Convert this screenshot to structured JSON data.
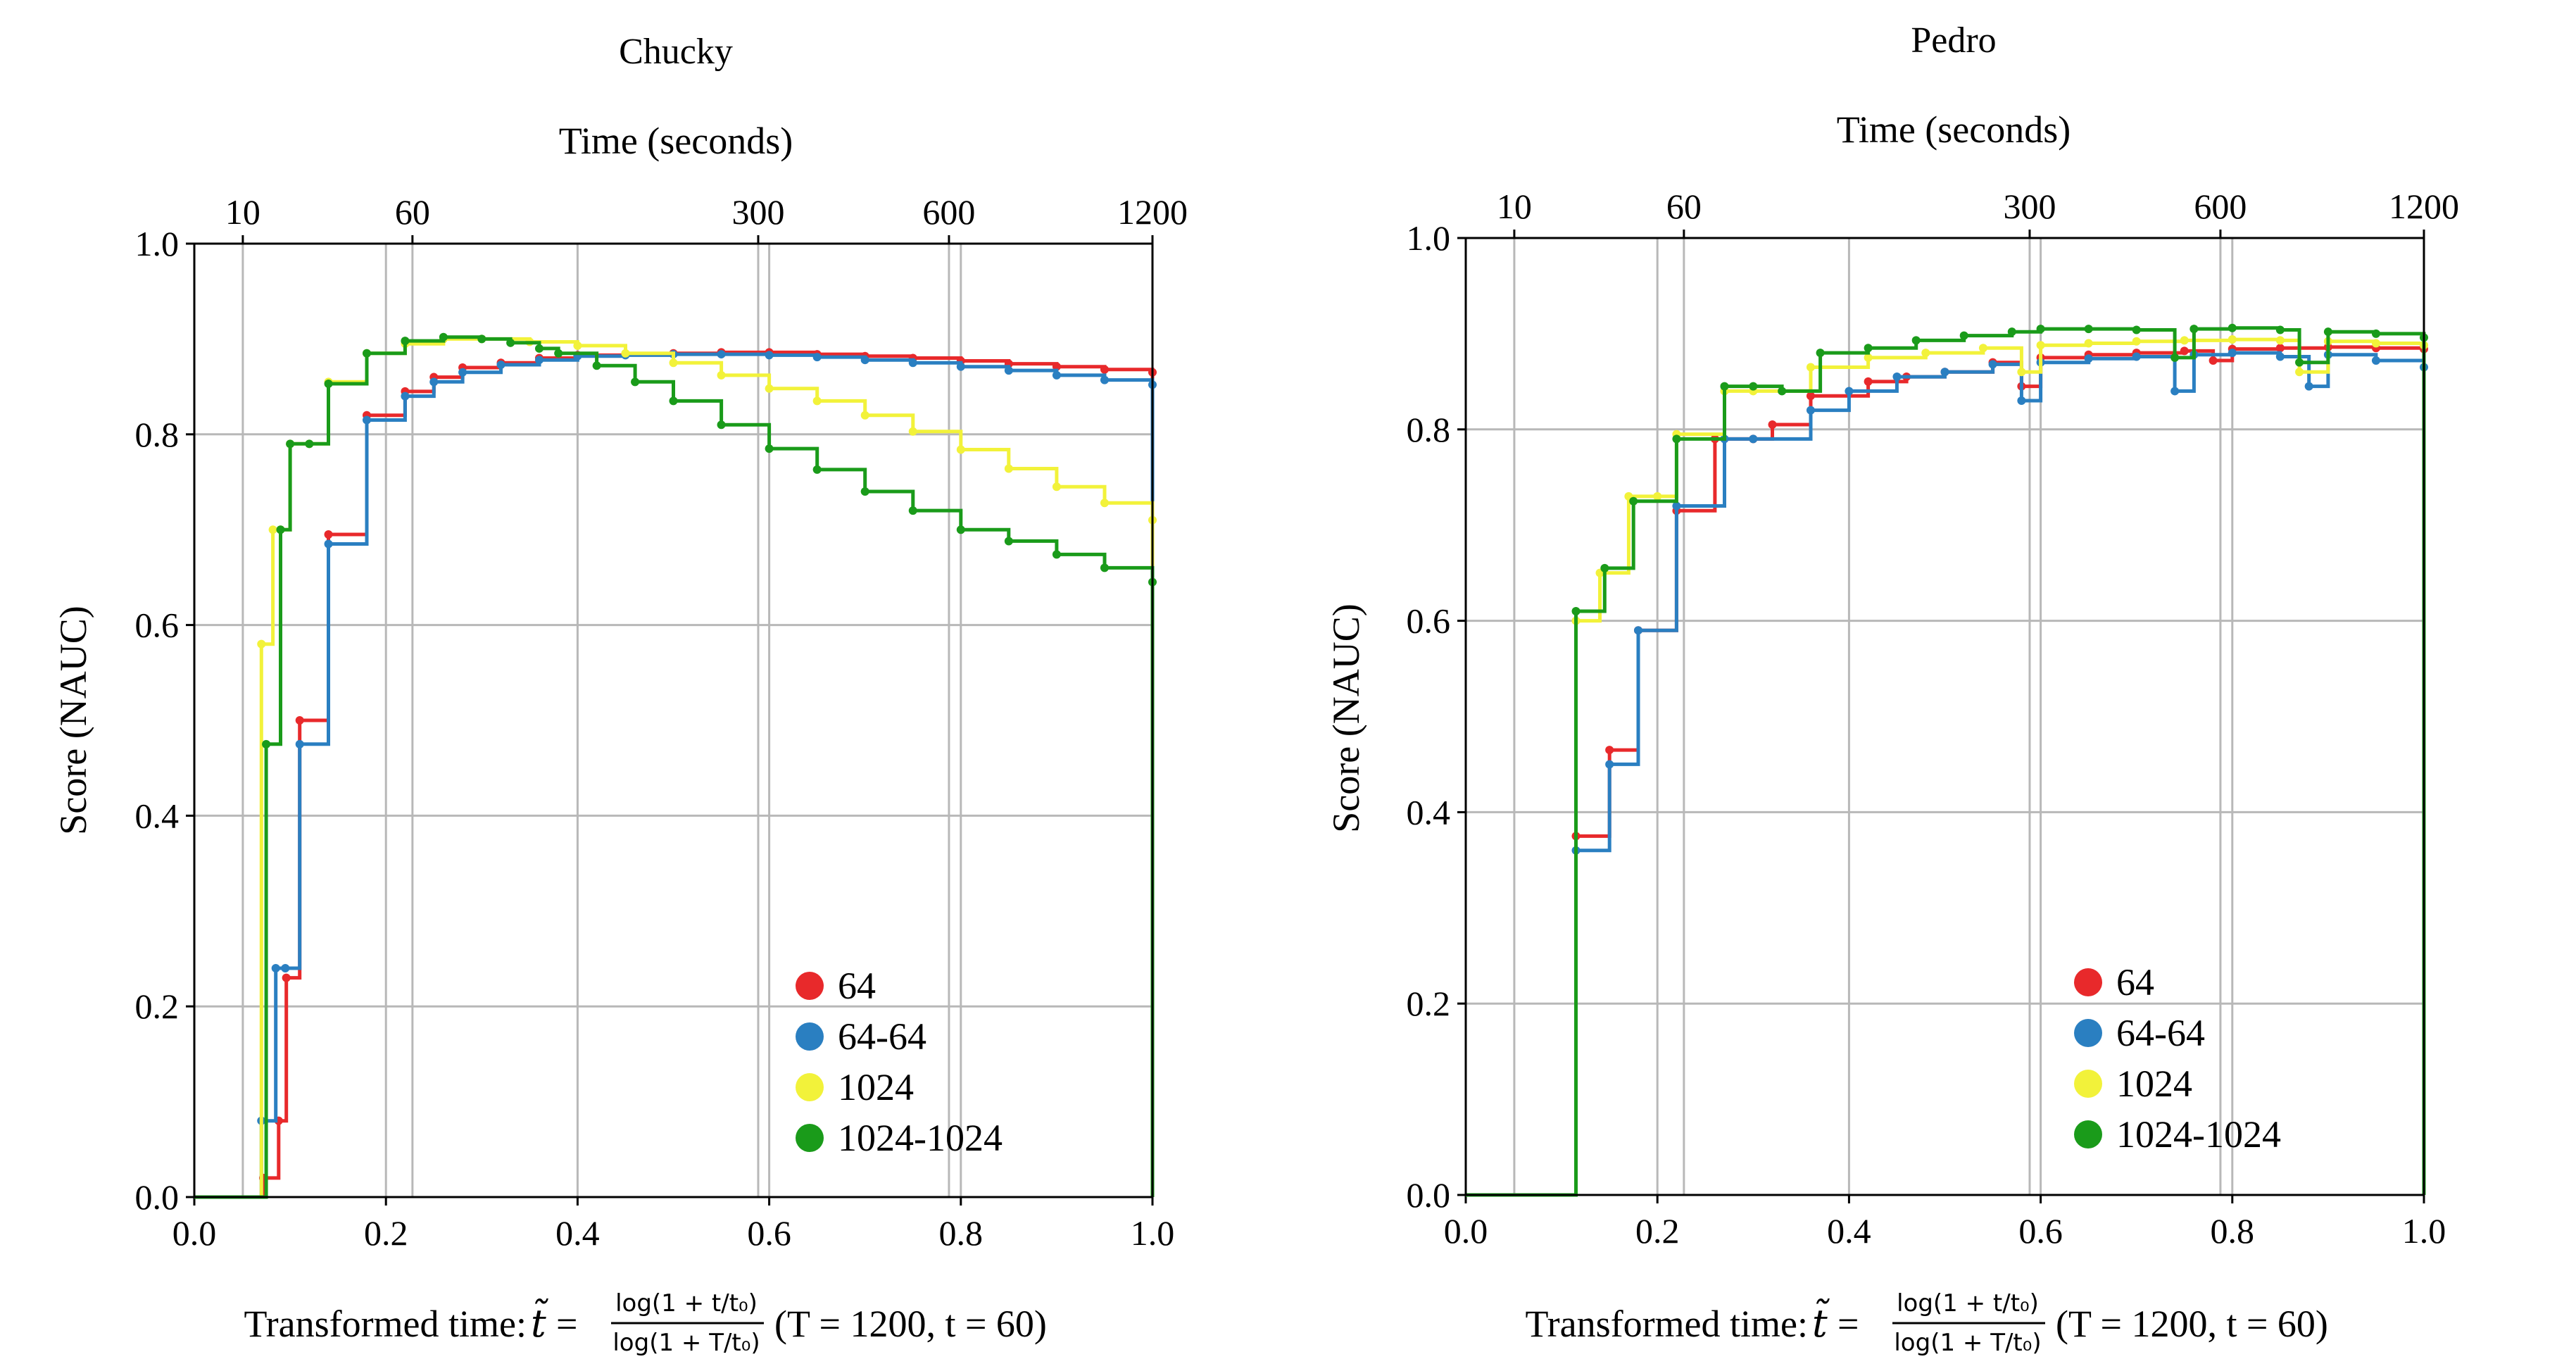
{
  "chart_data": [
    {
      "type": "line",
      "title": "Chucky",
      "top_xlabel": "Time (seconds)",
      "top_ticks": [
        10,
        60,
        300,
        600,
        1200
      ],
      "ylabel": "Score (NAUC)",
      "xlim": [
        0.0,
        1.0
      ],
      "ylim": [
        0.0,
        1.0
      ],
      "x_ticks": [
        "0.0",
        "0.2",
        "0.4",
        "0.6",
        "0.8",
        "1.0"
      ],
      "y_ticks": [
        "0.0",
        "0.2",
        "0.4",
        "0.6",
        "0.8",
        "1.0"
      ],
      "xlabel_prefix": "Transformed time: ",
      "xlabel_tilde": "t̃",
      "xlabel_equals": "=",
      "xlabel_num": "log(1 + t/t₀)",
      "xlabel_den": "log(1 + T/t₀)",
      "xlabel_suffix": "(T = 1200, t  = 60)",
      "legend_position": "lower-right",
      "series": [
        {
          "name": "64",
          "color": "#e8292b",
          "x": [
            0.0,
            0.072,
            0.088,
            0.096,
            0.11,
            0.14,
            0.18,
            0.22,
            0.25,
            0.28,
            0.32,
            0.36,
            0.4,
            0.45,
            0.5,
            0.55,
            0.6,
            0.65,
            0.7,
            0.75,
            0.8,
            0.85,
            0.9,
            0.95,
            1.0
          ],
          "y": [
            0.0,
            0.02,
            0.08,
            0.23,
            0.5,
            0.695,
            0.82,
            0.845,
            0.86,
            0.87,
            0.875,
            0.88,
            0.883,
            0.884,
            0.885,
            0.886,
            0.886,
            0.884,
            0.882,
            0.88,
            0.877,
            0.874,
            0.871,
            0.868,
            0.865
          ]
        },
        {
          "name": "64-64",
          "color": "#2a7fc1",
          "x": [
            0.0,
            0.07,
            0.085,
            0.095,
            0.11,
            0.14,
            0.18,
            0.22,
            0.25,
            0.28,
            0.32,
            0.36,
            0.4,
            0.45,
            0.5,
            0.55,
            0.6,
            0.65,
            0.7,
            0.75,
            0.8,
            0.85,
            0.9,
            0.95,
            1.0
          ],
          "y": [
            0.0,
            0.08,
            0.24,
            0.24,
            0.475,
            0.685,
            0.815,
            0.84,
            0.855,
            0.865,
            0.873,
            0.878,
            0.882,
            0.883,
            0.884,
            0.884,
            0.883,
            0.881,
            0.878,
            0.875,
            0.871,
            0.867,
            0.862,
            0.857,
            0.852
          ]
        },
        {
          "name": "1024",
          "color": "#f2f23a",
          "x": [
            0.0,
            0.07,
            0.082,
            0.09,
            0.1,
            0.12,
            0.14,
            0.18,
            0.22,
            0.26,
            0.3,
            0.35,
            0.4,
            0.45,
            0.5,
            0.55,
            0.6,
            0.65,
            0.7,
            0.75,
            0.8,
            0.85,
            0.9,
            0.95,
            1.0
          ],
          "y": [
            0.0,
            0.58,
            0.7,
            0.7,
            0.79,
            0.79,
            0.855,
            0.885,
            0.895,
            0.9,
            0.9,
            0.897,
            0.893,
            0.885,
            0.875,
            0.862,
            0.848,
            0.835,
            0.82,
            0.803,
            0.784,
            0.764,
            0.745,
            0.728,
            0.71
          ]
        },
        {
          "name": "1024-1024",
          "color": "#1a9b1a",
          "x": [
            0.0,
            0.075,
            0.09,
            0.1,
            0.12,
            0.14,
            0.18,
            0.22,
            0.26,
            0.3,
            0.33,
            0.36,
            0.38,
            0.42,
            0.46,
            0.5,
            0.55,
            0.6,
            0.65,
            0.7,
            0.75,
            0.8,
            0.85,
            0.9,
            0.95,
            1.0
          ],
          "y": [
            0.0,
            0.475,
            0.7,
            0.79,
            0.79,
            0.853,
            0.885,
            0.898,
            0.902,
            0.9,
            0.896,
            0.89,
            0.885,
            0.872,
            0.855,
            0.835,
            0.81,
            0.785,
            0.763,
            0.74,
            0.72,
            0.7,
            0.688,
            0.674,
            0.66,
            0.645
          ]
        }
      ]
    },
    {
      "type": "line",
      "title": "Pedro",
      "top_xlabel": "Time (seconds)",
      "top_ticks": [
        10,
        60,
        300,
        600,
        1200
      ],
      "ylabel": "Score (NAUC)",
      "xlim": [
        0.0,
        1.0
      ],
      "ylim": [
        0.0,
        1.0
      ],
      "x_ticks": [
        "0.0",
        "0.2",
        "0.4",
        "0.6",
        "0.8",
        "1.0"
      ],
      "y_ticks": [
        "0.0",
        "0.2",
        "0.4",
        "0.6",
        "0.8",
        "1.0"
      ],
      "xlabel_prefix": "Transformed time: ",
      "xlabel_tilde": "t̃",
      "xlabel_equals": "=",
      "xlabel_num": "log(1 + t/t₀)",
      "xlabel_den": "log(1 + T/t₀)",
      "xlabel_suffix": "(T = 1200, t  = 60)",
      "legend_position": "lower-right",
      "series": [
        {
          "name": "64",
          "color": "#e8292b",
          "x": [
            0.0,
            0.115,
            0.15,
            0.18,
            0.22,
            0.26,
            0.3,
            0.32,
            0.36,
            0.42,
            0.46,
            0.5,
            0.55,
            0.58,
            0.6,
            0.65,
            0.7,
            0.75,
            0.78,
            0.8,
            0.85,
            0.9,
            0.95,
            1.0
          ],
          "y": [
            0.0,
            0.375,
            0.465,
            0.59,
            0.715,
            0.79,
            0.79,
            0.805,
            0.835,
            0.85,
            0.855,
            0.86,
            0.87,
            0.845,
            0.875,
            0.878,
            0.88,
            0.882,
            0.872,
            0.884,
            0.885,
            0.886,
            0.885,
            0.884
          ]
        },
        {
          "name": "64-64",
          "color": "#2a7fc1",
          "x": [
            0.0,
            0.115,
            0.15,
            0.18,
            0.22,
            0.27,
            0.3,
            0.36,
            0.4,
            0.45,
            0.5,
            0.55,
            0.58,
            0.6,
            0.65,
            0.7,
            0.74,
            0.76,
            0.8,
            0.85,
            0.88,
            0.9,
            0.95,
            1.0
          ],
          "y": [
            0.0,
            0.36,
            0.45,
            0.59,
            0.72,
            0.79,
            0.79,
            0.82,
            0.84,
            0.855,
            0.86,
            0.868,
            0.83,
            0.87,
            0.874,
            0.876,
            0.84,
            0.878,
            0.88,
            0.876,
            0.845,
            0.878,
            0.872,
            0.865
          ]
        },
        {
          "name": "1024",
          "color": "#f2f23a",
          "x": [
            0.0,
            0.115,
            0.14,
            0.17,
            0.2,
            0.22,
            0.27,
            0.3,
            0.36,
            0.42,
            0.48,
            0.54,
            0.58,
            0.6,
            0.65,
            0.7,
            0.75,
            0.8,
            0.85,
            0.87,
            0.9,
            0.95,
            1.0
          ],
          "y": [
            0.0,
            0.6,
            0.65,
            0.73,
            0.73,
            0.795,
            0.84,
            0.84,
            0.865,
            0.875,
            0.88,
            0.885,
            0.86,
            0.888,
            0.89,
            0.892,
            0.893,
            0.894,
            0.893,
            0.86,
            0.892,
            0.89,
            0.888
          ]
        },
        {
          "name": "1024-1024",
          "color": "#1a9b1a",
          "x": [
            0.0,
            0.115,
            0.145,
            0.175,
            0.22,
            0.27,
            0.3,
            0.33,
            0.37,
            0.42,
            0.47,
            0.52,
            0.57,
            0.6,
            0.65,
            0.7,
            0.74,
            0.76,
            0.8,
            0.85,
            0.87,
            0.9,
            0.95,
            1.0
          ],
          "y": [
            0.0,
            0.61,
            0.655,
            0.725,
            0.79,
            0.845,
            0.845,
            0.84,
            0.88,
            0.885,
            0.893,
            0.898,
            0.902,
            0.905,
            0.905,
            0.904,
            0.875,
            0.905,
            0.906,
            0.904,
            0.87,
            0.902,
            0.9,
            0.896
          ]
        }
      ]
    }
  ]
}
